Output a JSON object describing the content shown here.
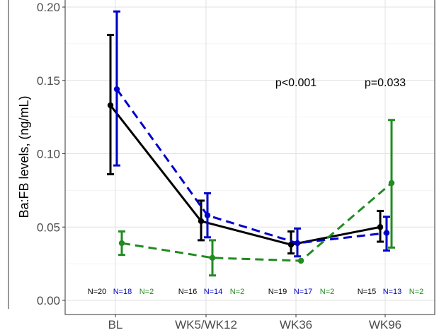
{
  "chart_data": {
    "type": "line",
    "categories": [
      "BL",
      "WK5/WK12",
      "WK36",
      "WK96"
    ],
    "xlabel": "",
    "ylabel": "Ba:FB levels, (ng/mL)",
    "ylim": [
      -0.01,
      0.205
    ],
    "yticks": [
      "0.00",
      "0.05",
      "0.10",
      "0.15",
      "0.20"
    ],
    "grid": true,
    "legend": "none",
    "series": [
      {
        "color": "#000000",
        "dash": "solid",
        "values": [
          0.133,
          0.054,
          0.038,
          0.05
        ],
        "err_low": [
          0.086,
          0.041,
          0.032,
          0.04
        ],
        "err_high": [
          0.181,
          0.068,
          0.047,
          0.061
        ],
        "n_labels": [
          "N=20",
          "N=16",
          "N=19",
          "N=15"
        ]
      },
      {
        "color": "#0000cc",
        "dash": "dashed",
        "values": [
          0.144,
          0.058,
          0.039,
          0.046
        ],
        "err_low": [
          0.092,
          0.043,
          0.03,
          0.034
        ],
        "err_high": [
          0.197,
          0.073,
          0.049,
          0.057
        ],
        "n_labels": [
          "N=18",
          "N=14",
          "N=17",
          "N=13"
        ]
      },
      {
        "color": "#228b22",
        "dash": "dashed",
        "values": [
          0.039,
          0.029,
          0.027,
          0.08
        ],
        "err_low": [
          0.031,
          0.017,
          null,
          0.036
        ],
        "err_high": [
          0.047,
          0.041,
          null,
          0.123
        ],
        "n_labels": [
          "N=2",
          "N=2",
          "N=2",
          "N=2"
        ]
      }
    ],
    "annotations": [
      {
        "text": "p<0.001",
        "category": "WK36"
      },
      {
        "text": "p=0.033",
        "category": "WK96"
      }
    ]
  }
}
